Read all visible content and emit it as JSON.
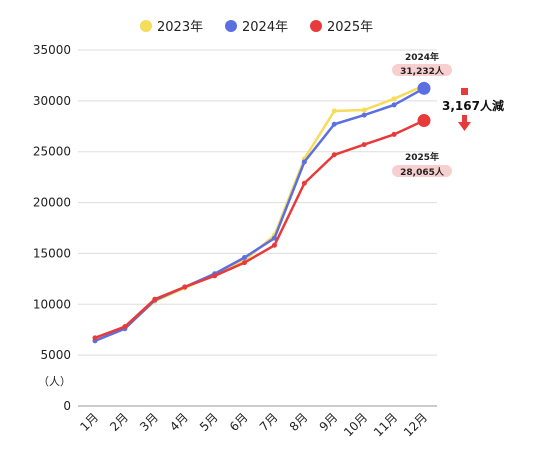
{
  "chart_data": {
    "type": "line",
    "categories": [
      "1月",
      "2月",
      "3月",
      "4月",
      "5月",
      "6月",
      "7月",
      "8月",
      "9月",
      "10月",
      "11月",
      "12月"
    ],
    "series": [
      {
        "name": "2023年",
        "color": "#f5dc5a",
        "values": [
          6500,
          7700,
          10300,
          11600,
          12900,
          14300,
          16800,
          24300,
          29000,
          29100,
          30200,
          31500
        ]
      },
      {
        "name": "2024年",
        "color": "#5b6fe0",
        "values": [
          6400,
          7600,
          10400,
          11700,
          13000,
          14600,
          16500,
          24000,
          27700,
          28600,
          29600,
          31232
        ]
      },
      {
        "name": "2025年",
        "color": "#e83a3a",
        "values": [
          6700,
          7800,
          10500,
          11700,
          12800,
          14100,
          15800,
          21900,
          24700,
          25700,
          26700,
          28065
        ]
      }
    ],
    "ylim": [
      0,
      35000
    ],
    "yticks": [
      "0",
      "5000",
      "10000",
      "15000",
      "20000",
      "25000",
      "30000",
      "35000"
    ],
    "ylabel": "（人）",
    "grid": true,
    "legend": "top",
    "annotations": {
      "callout_2024_year": "2024年",
      "callout_2024_value": "31,232人",
      "callout_2025_year": "2025年",
      "callout_2025_value": "28,065人",
      "difference": "3,167人減"
    }
  }
}
